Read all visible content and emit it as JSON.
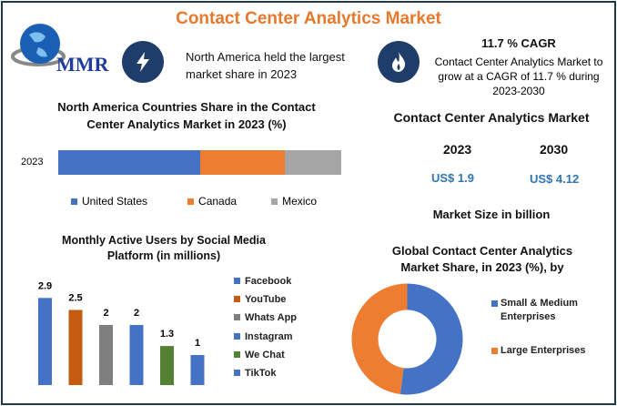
{
  "header": {
    "title": "Contact Center Analytics Market",
    "logo_text": "MMR"
  },
  "highlights": [
    {
      "icon": "lightning-icon",
      "text": "North America held the largest market share in 2023"
    },
    {
      "icon": "flame-icon",
      "heading": "11.7 % CAGR",
      "text": "Contact Center Analytics Market to grow at a CAGR of 11.7 % during 2023-2030"
    }
  ],
  "market_size": {
    "title": "Contact Center Analytics Market",
    "years": [
      "2023",
      "2030"
    ],
    "values": [
      "US$ 1.9",
      "US$ 4.12"
    ],
    "caption": "Market Size in billion"
  },
  "colors": {
    "blue": "#4472c4",
    "orange": "#ed7d31",
    "gray": "#a5a5a5",
    "darkorange": "#c55a11",
    "green": "#548235",
    "navy": "#1f3d6b"
  },
  "chart_data": [
    {
      "type": "bar",
      "stacked": true,
      "orientation": "horizontal",
      "title": "North America Countries Share in the  Contact Center Analytics Market  in 2023 (%)",
      "categories": [
        "2023"
      ],
      "series": [
        {
          "name": "United States",
          "values": [
            50
          ],
          "color": "#4472c4"
        },
        {
          "name": "Canada",
          "values": [
            30
          ],
          "color": "#ed7d31"
        },
        {
          "name": "Mexico",
          "values": [
            20
          ],
          "color": "#a5a5a5"
        }
      ],
      "legend": "bottom"
    },
    {
      "type": "bar",
      "title": "Monthly Active Users by Social Media Platform (in millions)",
      "categories": [
        "Facebook",
        "YouTube",
        "Whats App",
        "Instagram",
        "We Chat",
        "TikTok"
      ],
      "values": [
        2.9,
        2.5,
        2,
        2,
        1.3,
        1
      ],
      "labels": [
        "2.9",
        "2.5",
        "2",
        "2",
        "1.3",
        "1"
      ],
      "colors": [
        "#4472c4",
        "#c55a11",
        "#7f7f7f",
        "#4472c4",
        "#548235",
        "#4472c4"
      ],
      "legend": "right"
    },
    {
      "type": "pie",
      "donut": true,
      "title": "Global Contact Center Analytics Market Share, in 2023 (%), by",
      "categories": [
        "Small & Medium Enterprises",
        "Large Enterprises"
      ],
      "values": [
        52,
        48
      ],
      "colors": [
        "#4472c4",
        "#ed7d31"
      ],
      "legend": "right"
    }
  ]
}
